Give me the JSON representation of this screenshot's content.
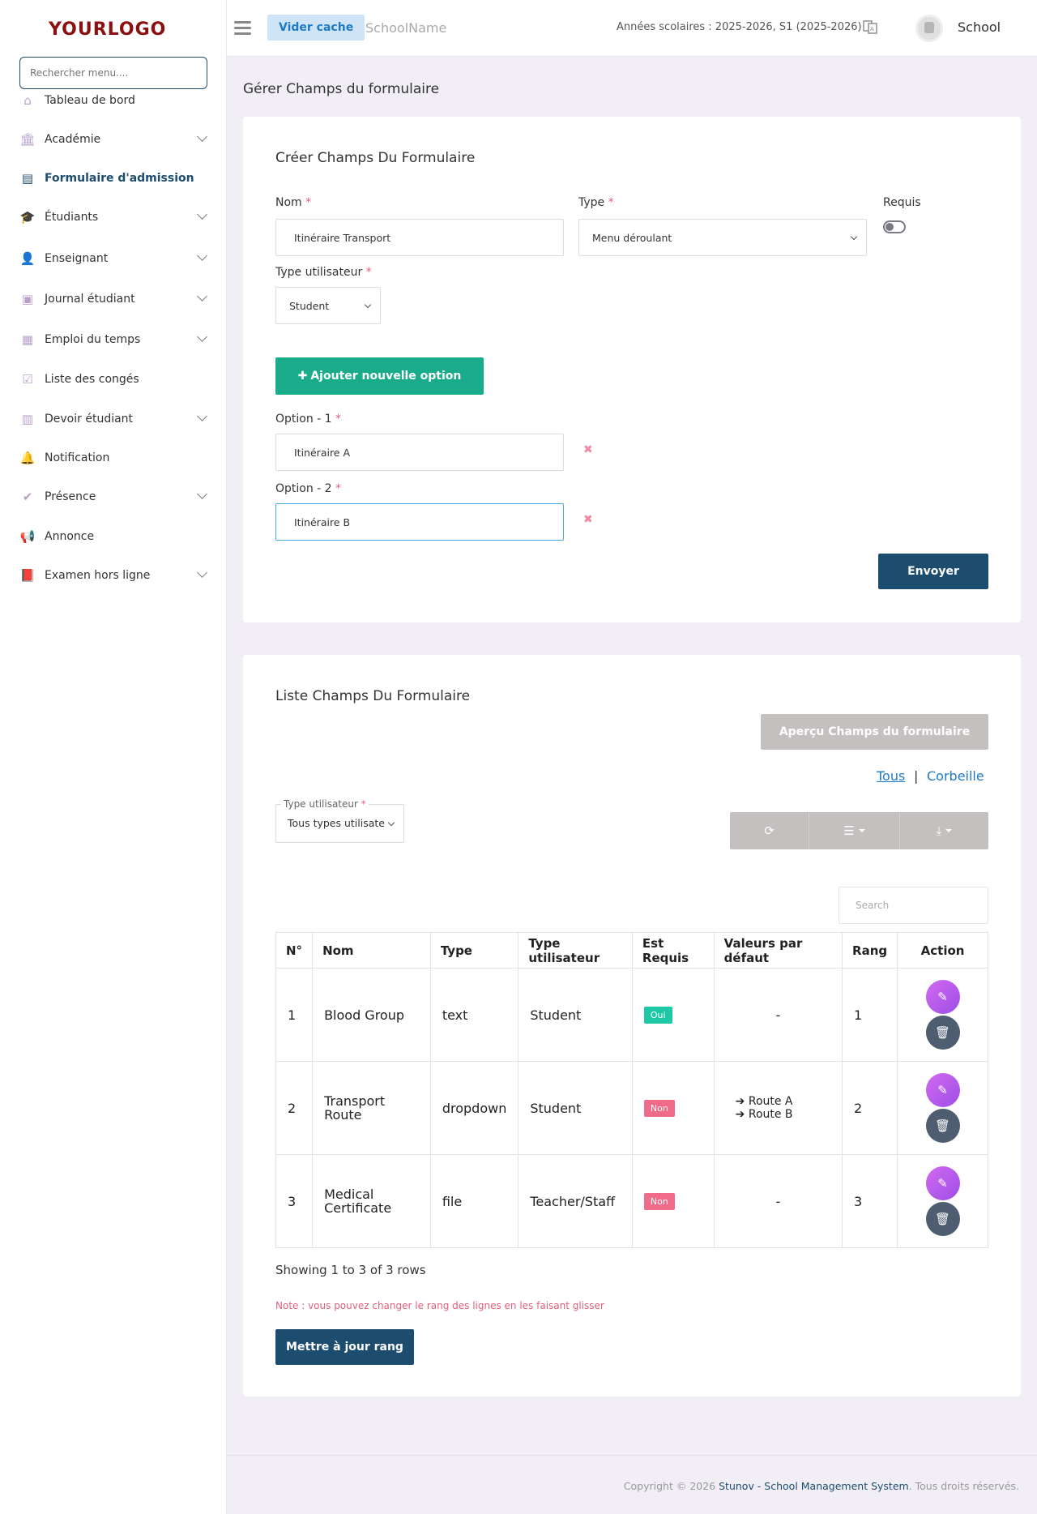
{
  "logo": {
    "text": "YOURLOGO"
  },
  "sidebar": {
    "search_placeholder": "Rechercher menu....",
    "items": [
      {
        "label": "Tableau de bord",
        "icon": "home-icon",
        "has_children": false,
        "active": false
      },
      {
        "label": "Académie",
        "icon": "institution-icon",
        "has_children": true,
        "active": false
      },
      {
        "label": "Formulaire d'admission",
        "icon": "form-icon",
        "has_children": false,
        "active": true
      },
      {
        "label": "Étudiants",
        "icon": "graduation-cap-icon",
        "has_children": true,
        "active": false
      },
      {
        "label": "Enseignant",
        "icon": "user-icon",
        "has_children": true,
        "active": false
      },
      {
        "label": "Journal étudiant",
        "icon": "journal-icon",
        "has_children": true,
        "active": false
      },
      {
        "label": "Emploi du temps",
        "icon": "calendar-icon",
        "has_children": true,
        "active": false
      },
      {
        "label": "Liste des congés",
        "icon": "calendar-check-icon",
        "has_children": false,
        "active": false
      },
      {
        "label": "Devoir étudiant",
        "icon": "homework-icon",
        "has_children": true,
        "active": false
      },
      {
        "label": "Notification",
        "icon": "bell-icon",
        "has_children": false,
        "active": false
      },
      {
        "label": "Présence",
        "icon": "check-icon",
        "has_children": true,
        "active": false
      },
      {
        "label": "Annonce",
        "icon": "megaphone-icon",
        "has_children": false,
        "active": false
      },
      {
        "label": "Examen hors ligne",
        "icon": "book-icon",
        "has_children": true,
        "active": false
      }
    ]
  },
  "topbar": {
    "clear_cache": "Vider cache",
    "school_name": "SchoolName",
    "years": "Années scolaires : 2025-2026, S1 (2025-2026)",
    "user": "School"
  },
  "page": {
    "title": "Gérer Champs du formulaire"
  },
  "create_form": {
    "title": "Créer Champs Du Formulaire",
    "name_label": "Nom",
    "name_value": "Itinéraire Transport",
    "type_label": "Type",
    "type_value": "Menu déroulant",
    "required_label": "Requis",
    "user_type_label": "Type utilisateur",
    "user_type_value": "Student",
    "add_option": "Ajouter nouvelle option",
    "options": [
      {
        "label": "Option - 1",
        "value": "Itinéraire A"
      },
      {
        "label": "Option - 2",
        "value": "Itinéraire B"
      }
    ],
    "submit": "Envoyer"
  },
  "list": {
    "title": "Liste Champs Du Formulaire",
    "preview_button": "Aperçu Champs du formulaire",
    "filter_all": "Tous",
    "filter_sep": "|",
    "filter_trash": "Corbeille",
    "user_type_legend": "Type utilisateur",
    "user_type_value": "Tous types utilisate",
    "search_placeholder": "Search",
    "columns": [
      "N°",
      "Nom",
      "Type",
      "Type utilisateur",
      "Est Requis",
      "Valeurs par défaut",
      "Rang",
      "Action"
    ],
    "rows": [
      {
        "n": "1",
        "name": "Blood Group",
        "type": "text",
        "user_type": "Student",
        "required": "Oui",
        "defaults": [
          "-"
        ],
        "rank": "1"
      },
      {
        "n": "2",
        "name": "Transport Route",
        "type": "dropdown",
        "user_type": "Student",
        "required": "Non",
        "defaults": [
          "Route A",
          "Route B"
        ],
        "rank": "2"
      },
      {
        "n": "3",
        "name": "Medical Certificate",
        "type": "file",
        "user_type": "Teacher/Staff",
        "required": "Non",
        "defaults": [
          "-"
        ],
        "rank": "3"
      }
    ],
    "showing": "Showing 1 to 3 of 3 rows",
    "note": "Note : vous pouvez changer le rang des lignes en les faisant glisser",
    "update_rank": "Mettre à jour rang"
  },
  "footer": {
    "prefix": "Copyright © 2026 ",
    "brand": "Stunov - School Management System",
    "suffix": ". Tous droits réservés."
  },
  "colors": {
    "primary": "#1d4d6e",
    "success": "#1aab8a",
    "danger": "#f06b8a",
    "accent_lilac": "#b79fc9"
  }
}
